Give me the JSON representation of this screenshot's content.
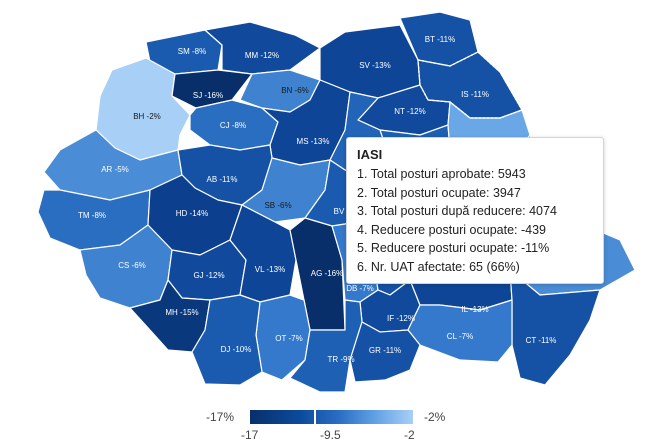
{
  "counties": [
    {
      "code": "SM",
      "label": "SM -8%",
      "color": "#1a5bb0"
    },
    {
      "code": "MM",
      "label": "MM -12%",
      "color": "#114a9c"
    },
    {
      "code": "BT",
      "label": "BT -11%",
      "color": "#1552a6"
    },
    {
      "code": "SV",
      "label": "SV -13%",
      "color": "#0f4597"
    },
    {
      "code": "BH",
      "label": "BH -2%",
      "color": "#a8cff5"
    },
    {
      "code": "SJ",
      "label": "SJ -16%",
      "color": "#082f6a"
    },
    {
      "code": "BN",
      "label": "BN -6%",
      "color": "#3e82d0"
    },
    {
      "code": "IS",
      "label": "IS -11%",
      "color": "#1552a6"
    },
    {
      "code": "CJ",
      "label": "CJ -8%",
      "color": "#2a6ec2"
    },
    {
      "code": "NT",
      "label": "NT -12%",
      "color": "#114a9c"
    },
    {
      "code": "BC",
      "label": "",
      "color": "#1d5fb2"
    },
    {
      "code": "VS",
      "label": "",
      "color": "#6aa7e6"
    },
    {
      "code": "MS",
      "label": "MS -13%",
      "color": "#0f4597"
    },
    {
      "code": "HR",
      "label": "",
      "color": "#2264b8"
    },
    {
      "code": "AR",
      "label": "AR -5%",
      "color": "#4a8cd6"
    },
    {
      "code": "AB",
      "label": "AB -11%",
      "color": "#1552a6"
    },
    {
      "code": "TM",
      "label": "TM -8%",
      "color": "#2a6ec2"
    },
    {
      "code": "HD",
      "label": "HD -14%",
      "color": "#0c3f8e"
    },
    {
      "code": "SB",
      "label": "SB -6%",
      "color": "#3e82d0"
    },
    {
      "code": "BV",
      "label": "BV",
      "color": "#1a5bb0"
    },
    {
      "code": "CV",
      "label": "",
      "color": "#1d5fb2"
    },
    {
      "code": "VN",
      "label": "",
      "color": "#2264b8"
    },
    {
      "code": "GL",
      "label": "",
      "color": "#3173c6"
    },
    {
      "code": "CS",
      "label": "CS -6%",
      "color": "#3e82d0"
    },
    {
      "code": "GJ",
      "label": "GJ -12%",
      "color": "#114a9c"
    },
    {
      "code": "VL",
      "label": "VL -13%",
      "color": "#0f4597"
    },
    {
      "code": "AG",
      "label": "AG -16%",
      "color": "#082f6a"
    },
    {
      "code": "BZ",
      "label": "",
      "color": "#1d5fb2"
    },
    {
      "code": "BR",
      "label": "",
      "color": "#2a6ec2"
    },
    {
      "code": "TL",
      "label": "",
      "color": "#4a8cd6"
    },
    {
      "code": "DB",
      "label": "DB -7%",
      "color": "#3479cb"
    },
    {
      "code": "PH",
      "label": "",
      "color": "#1552a6"
    },
    {
      "code": "MH",
      "label": "MH -15%",
      "color": "#0a387c"
    },
    {
      "code": "OT",
      "label": "OT -7%",
      "color": "#3479cb"
    },
    {
      "code": "IF",
      "label": "IF -12%",
      "color": "#114a9c"
    },
    {
      "code": "IL",
      "label": "IL -13%",
      "color": "#0f4597"
    },
    {
      "code": "CT",
      "label": "CT -11%",
      "color": "#1552a6"
    },
    {
      "code": "DJ",
      "label": "DJ -10%",
      "color": "#1a5bb0"
    },
    {
      "code": "CL",
      "label": "CL -7%",
      "color": "#3479cb"
    },
    {
      "code": "TR",
      "label": "TR -9%",
      "color": "#1e60b4"
    },
    {
      "code": "GR",
      "label": "GR -11%",
      "color": "#1552a6"
    }
  ],
  "tooltip": {
    "title": "IASI",
    "lines": [
      "1. Total posturi aprobate: 5943",
      "2. Total posturi ocupate: 3947",
      "3. Total posturi după reducere: 4074",
      "4. Reducere posturi ocupate: -439",
      "5. Reducere posturi ocupate: -11%",
      "6. Nr. UAT afectate: 65 (66%)"
    ]
  },
  "legend": {
    "min_label": "-17%",
    "max_label": "-2%",
    "tick_min": "-17",
    "tick_mid": "-9.5",
    "tick_max": "-2",
    "marker_value": -11,
    "color_low": "#08306b",
    "color_high": "#a9cff5"
  }
}
